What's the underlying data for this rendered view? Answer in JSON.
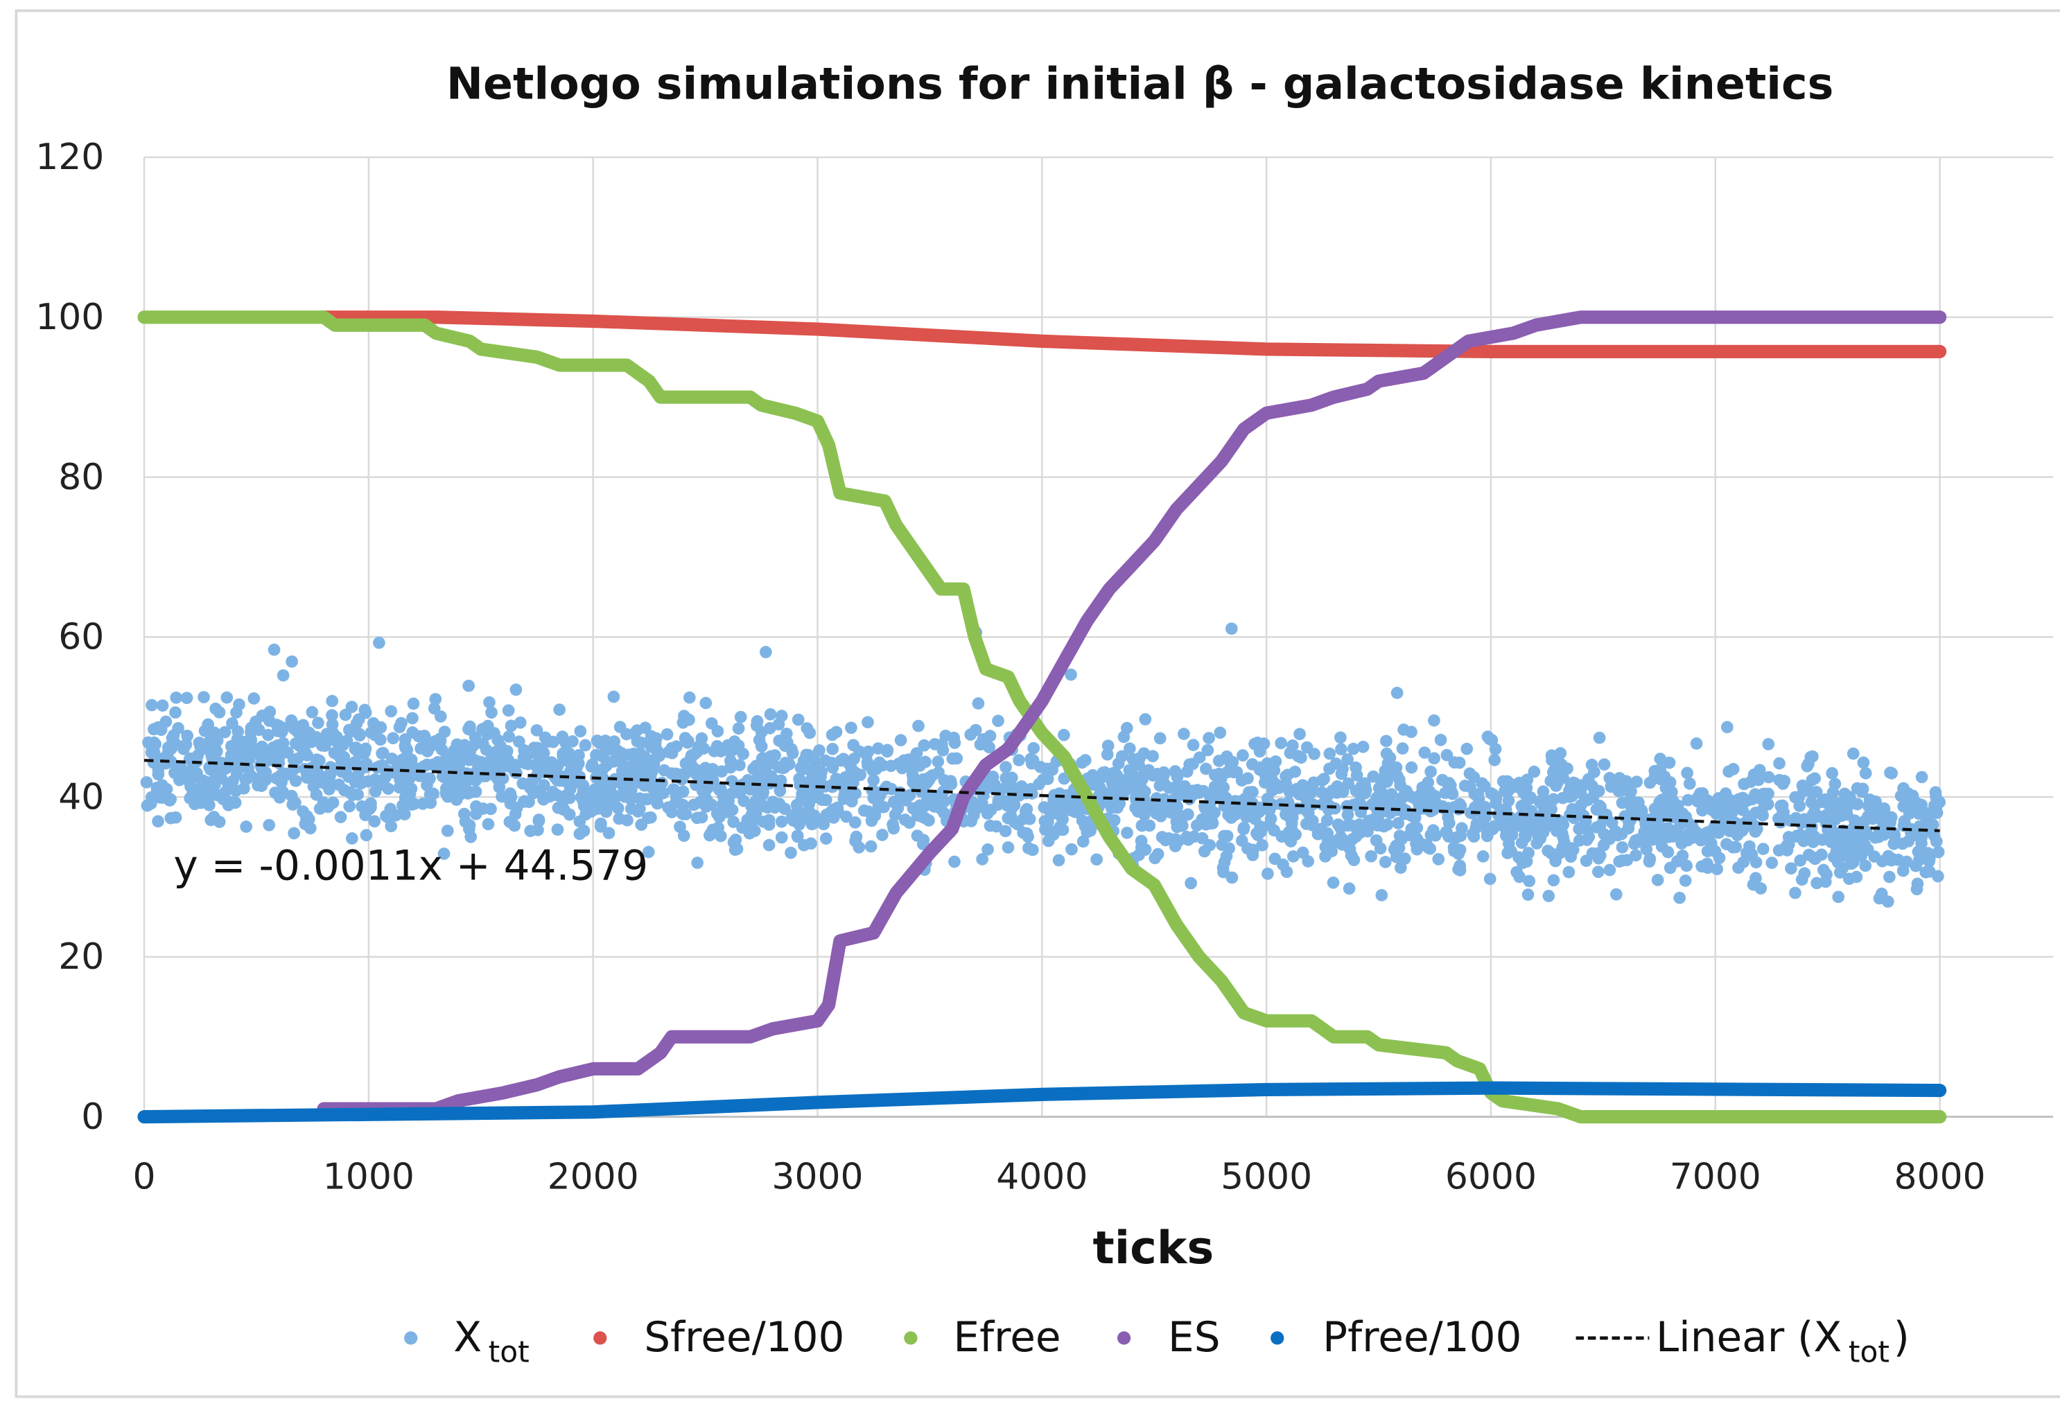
{
  "chart_data": {
    "type": "scatter",
    "title": "Netlogo simulations for initial β - galactosidase kinetics",
    "xlabel": "ticks",
    "ylabel": "",
    "xlim": [
      0,
      8000
    ],
    "ylim": [
      0,
      120
    ],
    "x_ticks": [
      "0",
      "1000",
      "2000",
      "3000",
      "4000",
      "5000",
      "6000",
      "7000",
      "8000"
    ],
    "y_ticks": [
      "0",
      "20",
      "40",
      "60",
      "80",
      "100",
      "120"
    ],
    "grid": true,
    "legend_position": "bottom",
    "annotation": "y = -0.0011x + 44.579",
    "series": [
      {
        "name": "X",
        "name_sub": "tot",
        "color": "#7db3e4",
        "kind": "scatter",
        "trend": {
          "slope": -0.0011,
          "intercept": 44.579
        },
        "spread": 5,
        "n_points": 2600
      },
      {
        "name": "Sfree/100",
        "color": "#dc524c",
        "kind": "step",
        "points": [
          [
            800,
            100
          ],
          [
            1300,
            100
          ],
          [
            2000,
            99.5
          ],
          [
            3000,
            98.5
          ],
          [
            4000,
            97
          ],
          [
            5000,
            96
          ],
          [
            6000,
            95.7
          ],
          [
            8000,
            95.7
          ]
        ]
      },
      {
        "name": "Efree",
        "color": "#8cc152",
        "kind": "step",
        "points": [
          [
            0,
            100
          ],
          [
            800,
            100
          ],
          [
            850,
            99
          ],
          [
            1250,
            99
          ],
          [
            1300,
            98
          ],
          [
            1450,
            97
          ],
          [
            1500,
            96
          ],
          [
            1750,
            95
          ],
          [
            1850,
            94
          ],
          [
            2150,
            94
          ],
          [
            2250,
            92
          ],
          [
            2300,
            90
          ],
          [
            2700,
            90
          ],
          [
            2750,
            89
          ],
          [
            2900,
            88
          ],
          [
            3000,
            87
          ],
          [
            3050,
            84
          ],
          [
            3100,
            78
          ],
          [
            3300,
            77
          ],
          [
            3350,
            74
          ],
          [
            3400,
            72
          ],
          [
            3500,
            68
          ],
          [
            3550,
            66
          ],
          [
            3650,
            66
          ],
          [
            3700,
            60
          ],
          [
            3750,
            56
          ],
          [
            3850,
            55
          ],
          [
            3900,
            52
          ],
          [
            3950,
            50
          ],
          [
            4000,
            48
          ],
          [
            4100,
            45
          ],
          [
            4200,
            40
          ],
          [
            4300,
            35
          ],
          [
            4400,
            31
          ],
          [
            4500,
            29
          ],
          [
            4600,
            24
          ],
          [
            4700,
            20
          ],
          [
            4800,
            17
          ],
          [
            4900,
            13
          ],
          [
            5000,
            12
          ],
          [
            5200,
            12
          ],
          [
            5300,
            10
          ],
          [
            5450,
            10
          ],
          [
            5500,
            9
          ],
          [
            5800,
            8
          ],
          [
            5850,
            7
          ],
          [
            5950,
            6
          ],
          [
            6000,
            3
          ],
          [
            6050,
            2
          ],
          [
            6300,
            1
          ],
          [
            6400,
            0
          ],
          [
            8000,
            0
          ]
        ]
      },
      {
        "name": "ES",
        "color": "#8a5eb0",
        "kind": "step",
        "points": [
          [
            800,
            1
          ],
          [
            1300,
            1
          ],
          [
            1400,
            2
          ],
          [
            1600,
            3
          ],
          [
            1750,
            4
          ],
          [
            1850,
            5
          ],
          [
            2000,
            6
          ],
          [
            2200,
            6
          ],
          [
            2300,
            8
          ],
          [
            2350,
            10
          ],
          [
            2700,
            10
          ],
          [
            2800,
            11
          ],
          [
            3000,
            12
          ],
          [
            3050,
            14
          ],
          [
            3100,
            22
          ],
          [
            3250,
            23
          ],
          [
            3350,
            28
          ],
          [
            3500,
            33
          ],
          [
            3600,
            36
          ],
          [
            3650,
            40
          ],
          [
            3750,
            44
          ],
          [
            3850,
            46
          ],
          [
            3900,
            48
          ],
          [
            4000,
            52
          ],
          [
            4100,
            57
          ],
          [
            4200,
            62
          ],
          [
            4300,
            66
          ],
          [
            4400,
            69
          ],
          [
            4500,
            72
          ],
          [
            4600,
            76
          ],
          [
            4700,
            79
          ],
          [
            4800,
            82
          ],
          [
            4900,
            86
          ],
          [
            5000,
            88
          ],
          [
            5200,
            89
          ],
          [
            5300,
            90
          ],
          [
            5450,
            91
          ],
          [
            5500,
            92
          ],
          [
            5700,
            93
          ],
          [
            5800,
            95
          ],
          [
            5900,
            97
          ],
          [
            6100,
            98
          ],
          [
            6200,
            99
          ],
          [
            6400,
            100
          ],
          [
            8000,
            100
          ]
        ]
      },
      {
        "name": "Pfree/100",
        "color": "#0a6fc2",
        "kind": "step",
        "points": [
          [
            0,
            0
          ],
          [
            2000,
            0.6
          ],
          [
            3000,
            1.8
          ],
          [
            4000,
            2.8
          ],
          [
            5000,
            3.4
          ],
          [
            6000,
            3.6
          ],
          [
            8000,
            3.3
          ]
        ]
      },
      {
        "name": "Linear (X",
        "name_sub": "tot",
        "name_end": ")",
        "color": "#111111",
        "kind": "trendline"
      }
    ]
  }
}
